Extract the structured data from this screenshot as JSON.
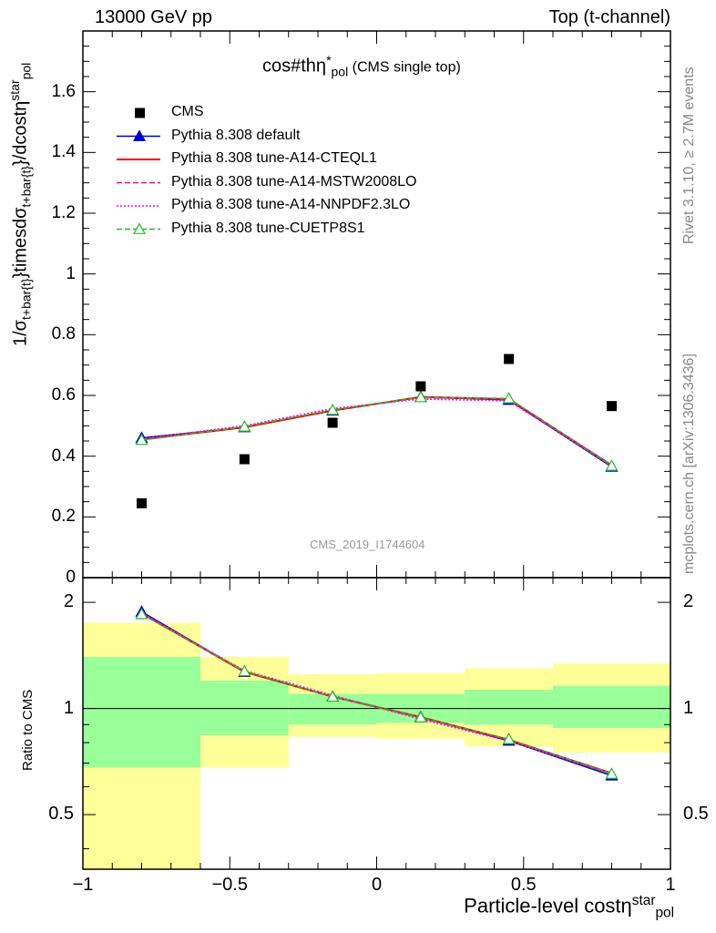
{
  "header": {
    "left": "13000 GeV pp",
    "right": "Top (t-channel)"
  },
  "side_labels": {
    "rivet": "Rivet 3.1.10, ≥ 2.7M events",
    "mcplots": "mcplots.cern.ch [arXiv:1306.3436]"
  },
  "main": {
    "title_main": "cos#thη",
    "title_sup": "*",
    "title_sub": "pol",
    "title_suffix": " (CMS single top)",
    "ylabel_a": "1/σ",
    "ylabel_sub1": "t+bar{t}",
    "ylabel_b": "}timesdσ",
    "ylabel_sub2": "t+bar{t}",
    "ylabel_c": "}/dcostη",
    "ylabel_sup": "star",
    "ylabel_sub3": "pol",
    "watermark": "CMS_2019_I1744604",
    "ytick_labels": [
      "0",
      "0.2",
      "0.4",
      "0.6",
      "0.8",
      "1",
      "1.2",
      "1.4",
      "1.6"
    ]
  },
  "ratio": {
    "ylabel": "Ratio to CMS",
    "ytick_labels_left": [
      "0.5",
      "1",
      "2"
    ],
    "ytick_labels_right": [
      "0.5",
      "1",
      "2"
    ]
  },
  "xaxis": {
    "tick_labels": [
      "−1",
      "−0.5",
      "0",
      "0.5",
      "1"
    ],
    "label_main": "Particle-level costη",
    "label_sup": "star",
    "label_sub": "pol"
  },
  "legend": [
    {
      "label": "CMS",
      "color": "#000000",
      "style": "marker-square"
    },
    {
      "label": "Pythia 8.308 default",
      "color": "#0000cc",
      "style": "solid-triangle"
    },
    {
      "label": "Pythia 8.308 tune-A14-CTEQL1",
      "color": "#ff0000",
      "style": "solid"
    },
    {
      "label": "Pythia 8.308 tune-A14-MSTW2008LO",
      "color": "#ff0080",
      "style": "dashed"
    },
    {
      "label": "Pythia 8.308 tune-A14-NNPDF2.3LO",
      "color": "#ff00ff",
      "style": "dotted"
    },
    {
      "label": "Pythia 8.308 tune-CUETP8S1",
      "color": "#22bb22",
      "style": "dashed-open-triangle"
    }
  ],
  "chart_data": [
    {
      "type": "line",
      "panel": "main",
      "xlim": [
        -1,
        1
      ],
      "ylim": [
        0,
        1.8
      ],
      "bins": [
        [
          -1,
          -0.6
        ],
        [
          -0.6,
          -0.3
        ],
        [
          -0.3,
          0.0
        ],
        [
          0.0,
          0.3
        ],
        [
          0.3,
          0.6
        ],
        [
          0.6,
          1.0
        ]
      ],
      "x": [
        -0.8,
        -0.45,
        -0.15,
        0.15,
        0.45,
        0.8
      ],
      "series": [
        {
          "name": "CMS",
          "values": [
            0.245,
            0.39,
            0.51,
            0.63,
            0.72,
            0.565
          ]
        },
        {
          "name": "Pythia 8.308 default",
          "values": [
            0.46,
            0.495,
            0.55,
            0.595,
            0.585,
            0.365
          ]
        },
        {
          "name": "Pythia 8.308 tune-A14-CTEQL1",
          "values": [
            0.455,
            0.495,
            0.55,
            0.595,
            0.588,
            0.37
          ]
        },
        {
          "name": "Pythia 8.308 tune-A14-MSTW2008LO",
          "values": [
            0.455,
            0.497,
            0.552,
            0.593,
            0.588,
            0.37
          ]
        },
        {
          "name": "Pythia 8.308 tune-A14-NNPDF2.3LO",
          "values": [
            0.457,
            0.5,
            0.557,
            0.588,
            0.582,
            0.368
          ]
        },
        {
          "name": "Pythia 8.308 tune-CUETP8S1",
          "values": [
            0.453,
            0.497,
            0.552,
            0.594,
            0.59,
            0.368
          ]
        }
      ]
    },
    {
      "type": "line",
      "panel": "ratio",
      "ylabel": "Ratio to CMS",
      "xlim": [
        -1,
        1
      ],
      "ylim": [
        0.35,
        2.35
      ],
      "log_y": true,
      "reference": 1,
      "x": [
        -0.8,
        -0.45,
        -0.15,
        0.15,
        0.45,
        0.8
      ],
      "bands": [
        {
          "xlo": -1,
          "xhi": -0.6,
          "inner": [
            0.68,
            1.4
          ],
          "outer": [
            0.35,
            1.75
          ]
        },
        {
          "xlo": -0.6,
          "xhi": -0.3,
          "inner": [
            0.84,
            1.2
          ],
          "outer": [
            0.68,
            1.4
          ]
        },
        {
          "xlo": -0.3,
          "xhi": 0.0,
          "inner": [
            0.9,
            1.1
          ],
          "outer": [
            0.83,
            1.25
          ]
        },
        {
          "xlo": 0.0,
          "xhi": 0.3,
          "inner": [
            0.91,
            1.1
          ],
          "outer": [
            0.82,
            1.26
          ]
        },
        {
          "xlo": 0.3,
          "xhi": 0.6,
          "inner": [
            0.9,
            1.13
          ],
          "outer": [
            0.78,
            1.3
          ]
        },
        {
          "xlo": 0.6,
          "xhi": 1.0,
          "inner": [
            0.88,
            1.16
          ],
          "outer": [
            0.75,
            1.34
          ]
        }
      ],
      "series": [
        {
          "name": "Pythia 8.308 default",
          "values": [
            1.88,
            1.27,
            1.08,
            0.945,
            0.81,
            0.645
          ]
        },
        {
          "name": "Pythia 8.308 tune-A14-CTEQL1",
          "values": [
            1.86,
            1.27,
            1.08,
            0.945,
            0.815,
            0.655
          ]
        },
        {
          "name": "Pythia 8.308 tune-A14-MSTW2008LO",
          "values": [
            1.86,
            1.275,
            1.08,
            0.94,
            0.815,
            0.655
          ]
        },
        {
          "name": "Pythia 8.308 tune-A14-NNPDF2.3LO",
          "values": [
            1.865,
            1.28,
            1.09,
            0.933,
            0.808,
            0.652
          ]
        },
        {
          "name": "Pythia 8.308 tune-CUETP8S1",
          "values": [
            1.85,
            1.275,
            1.08,
            0.943,
            0.818,
            0.652
          ]
        }
      ]
    }
  ]
}
